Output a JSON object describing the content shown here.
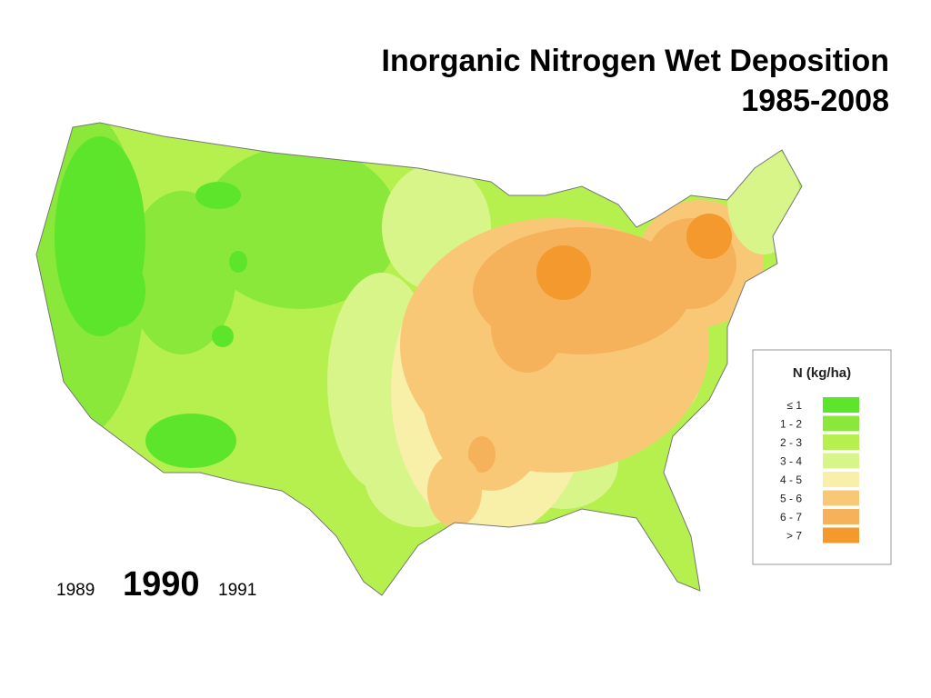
{
  "title": {
    "line1": "Inorganic Nitrogen Wet Deposition",
    "line2": "1985-2008"
  },
  "legend": {
    "title": "N  (kg/ha)",
    "items": [
      {
        "label": "≤ 1",
        "color": "#5de52c"
      },
      {
        "label": "1 - 2",
        "color": "#8ae83a"
      },
      {
        "label": "2 - 3",
        "color": "#b5f04f"
      },
      {
        "label": "3 - 4",
        "color": "#d8f58a"
      },
      {
        "label": "4 - 5",
        "color": "#f8efa8"
      },
      {
        "label": "5 - 6",
        "color": "#f8c877"
      },
      {
        "label": "6 - 7",
        "color": "#f5b25a"
      },
      {
        "label": "> 7",
        "color": "#f3992e"
      }
    ]
  },
  "years": {
    "previous": "1989",
    "current": "1990",
    "next": "1991"
  }
}
